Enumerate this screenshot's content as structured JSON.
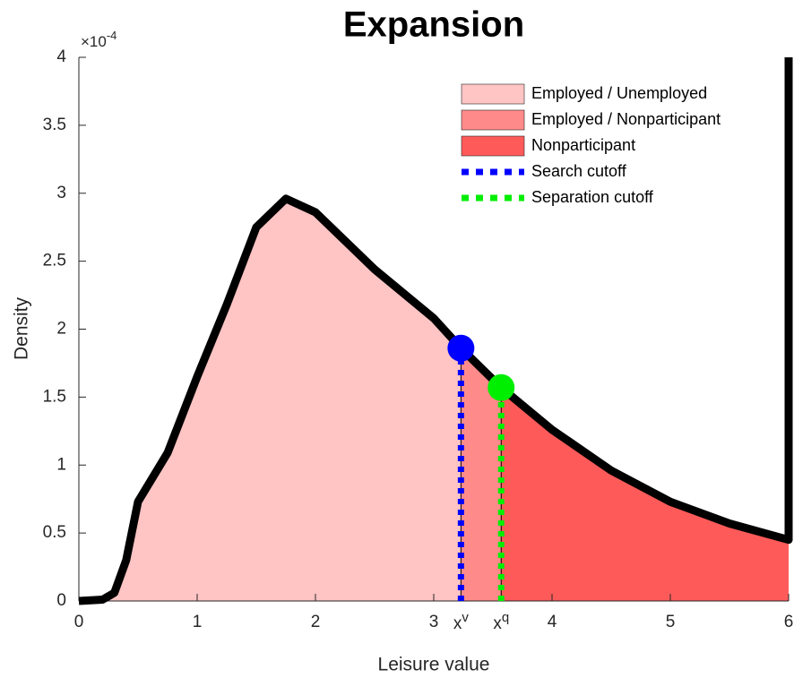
{
  "chart_data": {
    "type": "area",
    "title": "Expansion",
    "xlabel": "Leisure value",
    "ylabel": "Density",
    "y_multiplier": {
      "base": "×10",
      "exponent": "-4"
    },
    "x": [
      0,
      0.2,
      0.3,
      0.4,
      0.5,
      0.75,
      1,
      1.25,
      1.5,
      1.75,
      2,
      2.5,
      3,
      3.23,
      3.57,
      4,
      4.5,
      5,
      5.5,
      6,
      6
    ],
    "values": [
      0,
      0.01,
      0.06,
      0.3,
      0.73,
      1.09,
      1.65,
      2.18,
      2.75,
      2.96,
      2.86,
      2.44,
      2.08,
      1.86,
      1.57,
      1.26,
      0.96,
      0.73,
      0.57,
      0.45,
      4
    ],
    "curve_color": "#000000",
    "regions": [
      {
        "name": "Employed / Unemployed",
        "color": "#ffc4c4"
      },
      {
        "name": "Employed / Nonparticipant",
        "color": "#ff8a8a"
      },
      {
        "name": "Nonparticipant",
        "color": "#ff5a5a"
      }
    ],
    "cutoffs": [
      {
        "name": "Search cutoff",
        "color": "#0000ff",
        "x": 3.23,
        "y": 1.86,
        "label": "x",
        "sup": "v"
      },
      {
        "name": "Separation cutoff",
        "color": "#00ee00",
        "x": 3.57,
        "y": 1.57,
        "label": "x",
        "sup": "q"
      }
    ],
    "xlim": [
      0,
      6
    ],
    "ylim": [
      0,
      4
    ],
    "xticks": [
      0,
      1,
      2,
      3,
      4,
      5,
      6
    ],
    "yticks": [
      0,
      0.5,
      1,
      1.5,
      2,
      2.5,
      3,
      3.5,
      4
    ],
    "legend": "top-right"
  }
}
